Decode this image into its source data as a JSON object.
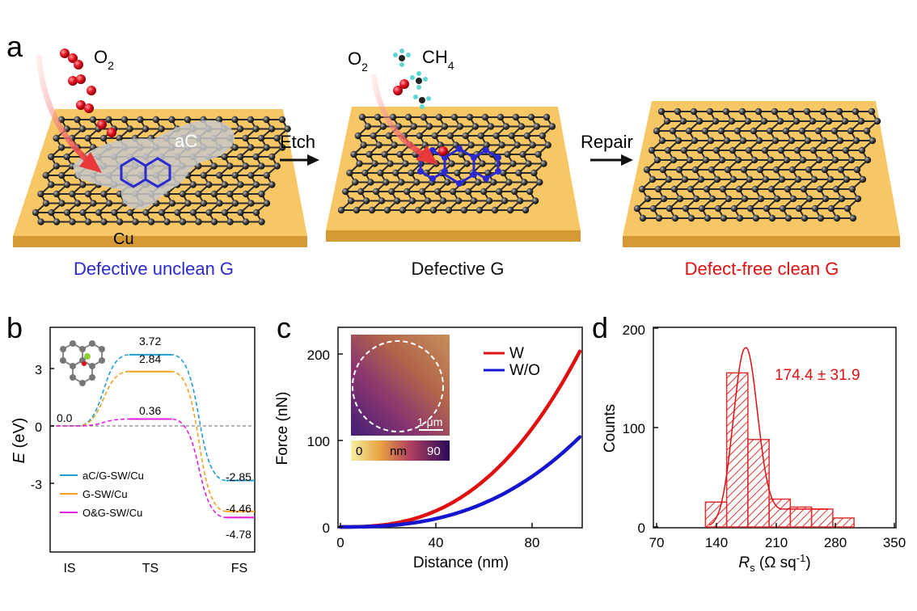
{
  "panel_a": {
    "letter": "a",
    "o2_label": "O",
    "o2_sub": "2",
    "ch4_label": "CH",
    "ch4_sub": "4",
    "ac_label": "aC",
    "cu_label": "Cu",
    "etch_label": "Etch",
    "repair_label": "Repair",
    "caption_1": "Defective unclean G",
    "caption_2": "Defective G",
    "caption_3": "Defect-free clean G",
    "colors": {
      "substrate": "#f5c15a",
      "atom": "#3a3a3a",
      "defect": "#2a2ad0",
      "oxygen": "#e0101e",
      "caption_1": "#2a2ad0",
      "caption_2": "#111111",
      "caption_3": "#e01010"
    }
  },
  "panel_b": {
    "letter": "b",
    "ylabel_var": "E",
    "ylabel_unit": " (eV)",
    "y_ticks": [
      "3",
      "0",
      "-3"
    ],
    "x_ticks": [
      "IS",
      "TS",
      "FS"
    ],
    "values": {
      "is": "0.0",
      "ts1": "3.72",
      "ts2": "2.84",
      "ts3": "0.36",
      "fs1": "-2.85",
      "fs2": "-4.46",
      "fs3": "-4.78"
    },
    "legend": [
      "aC/G-SW/Cu",
      "G-SW/Cu",
      "O&G-SW/Cu"
    ]
  },
  "panel_c": {
    "letter": "c",
    "ylabel": "Force (nN)",
    "xlabel": "Distance (nm)",
    "y_ticks": [
      "0",
      "100",
      "200"
    ],
    "x_ticks": [
      "0",
      "40",
      "80"
    ],
    "legend": [
      "W",
      "W/O"
    ],
    "scale_bar": "1 μm",
    "colorbar": {
      "min": "0",
      "unit": "nm",
      "max": "90"
    }
  },
  "panel_d": {
    "letter": "d",
    "ylabel": "Counts",
    "xlabel_var": "R",
    "xlabel_sub": "s",
    "xlabel_unit": " (Ω sq",
    "xlabel_sup": "-1",
    "xlabel_close": ")",
    "y_ticks": [
      "0",
      "100",
      "200"
    ],
    "x_ticks": [
      "70",
      "140",
      "210",
      "280",
      "350"
    ],
    "annotation": "174.4 ± 31.9"
  },
  "chart_data": [
    {
      "type": "line",
      "panel": "b",
      "x": [
        "IS",
        "TS",
        "FS"
      ],
      "ylabel": "E (eV)",
      "ylim": [
        -5.8,
        4.6
      ],
      "series": [
        {
          "name": "aC/G-SW/Cu",
          "color": "#1f9fd0",
          "values": [
            0.0,
            3.72,
            -2.85
          ]
        },
        {
          "name": "G-SW/Cu",
          "color": "#f0a020",
          "values": [
            0.0,
            2.84,
            -4.46
          ]
        },
        {
          "name": "O&G-SW/Cu",
          "color": "#e020e0",
          "values": [
            0.0,
            0.36,
            -4.78
          ]
        }
      ]
    },
    {
      "type": "line",
      "panel": "c",
      "xlabel": "Distance (nm)",
      "ylabel": "Force (nN)",
      "xlim": [
        0,
        100
      ],
      "ylim": [
        -5,
        235
      ],
      "series": [
        {
          "name": "W",
          "color": "#e01010",
          "x": [
            0,
            20,
            40,
            60,
            80,
            100
          ],
          "y": [
            0,
            10,
            30,
            66,
            122,
            203
          ]
        },
        {
          "name": "W/O",
          "color": "#1515d0",
          "x": [
            0,
            20,
            40,
            60,
            80,
            100
          ],
          "y": [
            0,
            3,
            12,
            30,
            60,
            104
          ]
        }
      ]
    },
    {
      "type": "bar",
      "panel": "d",
      "xlabel": "Rs (Ω sq-1)",
      "ylabel": "Counts",
      "xlim": [
        70,
        350
      ],
      "ylim": [
        0,
        200
      ],
      "bin_centers": [
        140,
        165,
        190,
        215,
        240,
        265,
        290
      ],
      "values": [
        25,
        155,
        88,
        28,
        20,
        18,
        9
      ],
      "fit_mean": 174.4,
      "fit_sd": 31.9
    }
  ]
}
